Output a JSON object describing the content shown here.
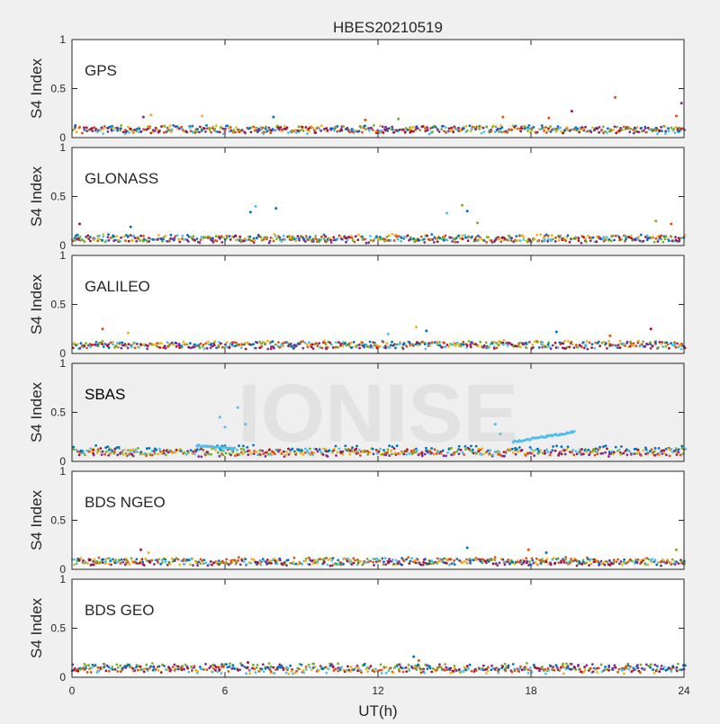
{
  "chart_data": {
    "type": "scatter",
    "title": "HBES20210519",
    "xlabel": "UT(h)",
    "ylabel": "S4 Index",
    "xlim": [
      0,
      24
    ],
    "ylim": [
      0,
      1
    ],
    "xticks": [
      0,
      6,
      12,
      18,
      24
    ],
    "yticks": [
      0,
      0.5,
      1
    ],
    "watermark": "IONISE",
    "colors": [
      "#0072bd",
      "#d95319",
      "#edb120",
      "#7e2f8e",
      "#77ac30",
      "#4dbeee",
      "#a2142f"
    ],
    "panels": [
      {
        "label": "GPS",
        "series_values": {
          "base": [
            0.09,
            0.08,
            0.09,
            0.08,
            0.09,
            0.07,
            0.08
          ],
          "spikes": [
            [
              2.8,
              0.21
            ],
            [
              3.1,
              0.23
            ],
            [
              5.1,
              0.22
            ],
            [
              7.9,
              0.21
            ],
            [
              11.5,
              0.18
            ],
            [
              12.8,
              0.19
            ],
            [
              16.9,
              0.21
            ],
            [
              18.7,
              0.2
            ],
            [
              19.6,
              0.27
            ],
            [
              21.3,
              0.41
            ],
            [
              23.9,
              0.35
            ],
            [
              23.7,
              0.22
            ]
          ]
        }
      },
      {
        "label": "GLONASS",
        "series_values": {
          "base": [
            0.08,
            0.07,
            0.08,
            0.06,
            0.07,
            0.07,
            0.07
          ],
          "spikes": [
            [
              0.3,
              0.22
            ],
            [
              2.3,
              0.19
            ],
            [
              7.2,
              0.4
            ],
            [
              8.0,
              0.38
            ],
            [
              7.0,
              0.34
            ],
            [
              14.7,
              0.33
            ],
            [
              15.3,
              0.41
            ],
            [
              15.5,
              0.35
            ],
            [
              15.9,
              0.23
            ],
            [
              22.9,
              0.25
            ],
            [
              23.5,
              0.22
            ]
          ]
        }
      },
      {
        "label": "GALILEO",
        "series_values": {
          "base": [
            0.09,
            0.09,
            0.1,
            0.08,
            0.09,
            0.08,
            0.08
          ],
          "spikes": [
            [
              1.2,
              0.25
            ],
            [
              2.2,
              0.21
            ],
            [
              12.4,
              0.2
            ],
            [
              13.5,
              0.27
            ],
            [
              13.9,
              0.23
            ],
            [
              19.0,
              0.22
            ],
            [
              21.1,
              0.18
            ],
            [
              22.7,
              0.25
            ]
          ]
        }
      },
      {
        "label": "SBAS",
        "series_values": {
          "base": [
            0.13,
            0.09,
            0.1,
            0.08,
            0.1,
            0.1,
            0.1
          ],
          "spikes": [
            [
              5.8,
              0.45
            ],
            [
              6.0,
              0.35
            ],
            [
              6.5,
              0.55
            ],
            [
              6.8,
              0.38
            ],
            [
              16.6,
              0.38
            ],
            [
              16.8,
              0.28
            ]
          ],
          "arcs": [
            {
              "from": 4.9,
              "to": 6.4,
              "start": 0.16,
              "end": 0.13
            },
            {
              "from": 17.3,
              "to": 19.7,
              "start": 0.2,
              "end": 0.3
            }
          ]
        }
      },
      {
        "label": "BDS NGEO",
        "series_values": {
          "base": [
            0.08,
            0.09,
            0.08,
            0.07,
            0.08,
            0.08,
            0.07
          ],
          "spikes": [
            [
              2.7,
              0.2
            ],
            [
              3.0,
              0.17
            ],
            [
              15.5,
              0.22
            ],
            [
              17.9,
              0.2
            ],
            [
              18.6,
              0.17
            ],
            [
              23.7,
              0.2
            ]
          ]
        }
      },
      {
        "label": "BDS GEO",
        "series_values": {
          "base": [
            0.1,
            0.08,
            0.07,
            0.1,
            0.11,
            0.07,
            0.08
          ],
          "spikes": [
            [
              6.9,
              0.15
            ],
            [
              13.4,
              0.21
            ],
            [
              13.6,
              0.17
            ]
          ]
        }
      }
    ]
  }
}
